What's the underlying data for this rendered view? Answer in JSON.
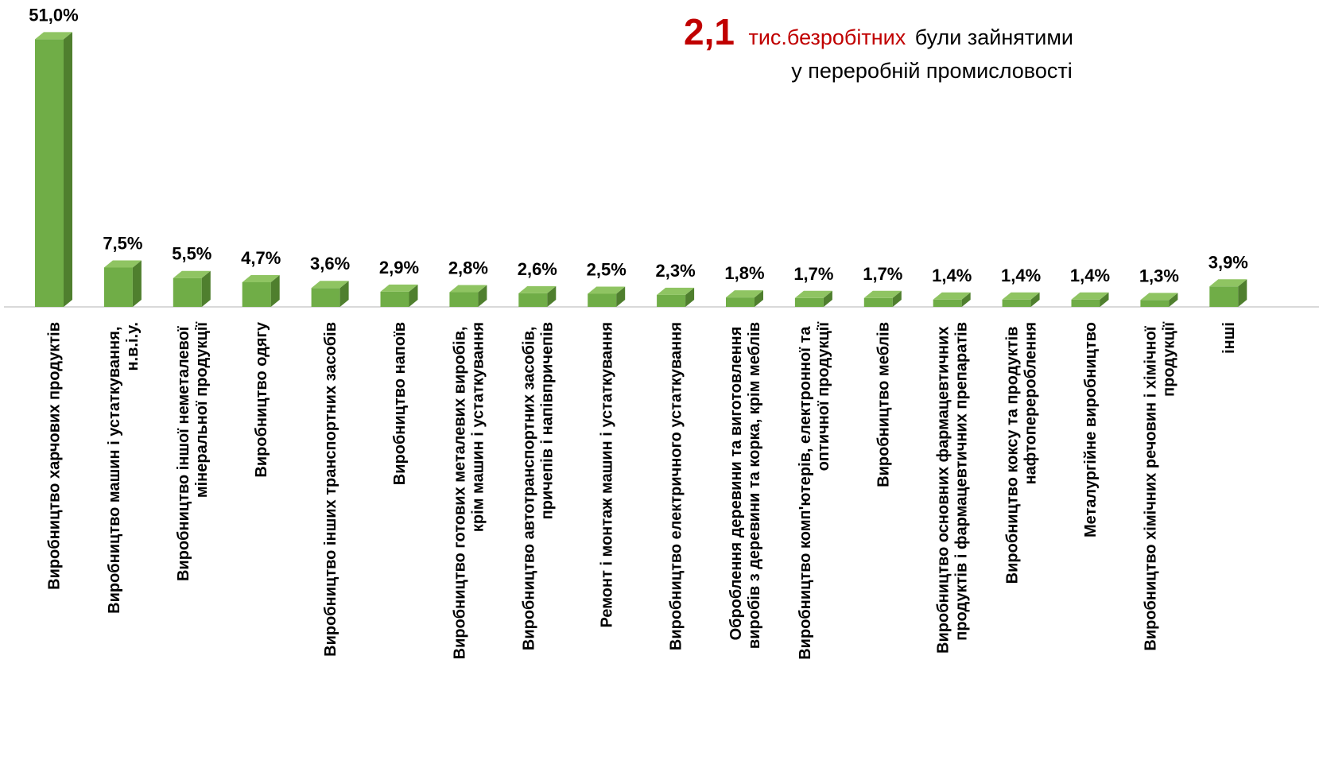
{
  "chart_data": {
    "type": "bar",
    "annotation": {
      "number": "2,1",
      "unit": "тис.безробітних",
      "text": "були зайнятими",
      "line2": "у переробній промисловості"
    },
    "categories": [
      "Виробництво харчових продуктів",
      "Виробництво машин і устаткування, н.в.і.у.",
      "Виробництво іншої неметалевої мінеральної продукції",
      "Виробництво одягу",
      "Виробництво інших транспортних засобів",
      "Виробництво напоїв",
      "Виробництво готових металевих виробів, крім машин і устаткування",
      "Виробництво автотранспортних засобів, причепів і напівпричепів",
      "Ремонт і монтаж машин і устаткування",
      "Виробництво електричного устаткування",
      "Оброблення деревини та виготовлення виробів з деревини та корка, крім меблів",
      "Виробництво комп'ютерів, електронної та оптичної продукції",
      "Виробництво меблів",
      "Виробництво основних фармацевтичних продуктів і фармацевтичних препаратів",
      "Виробництво коксу та продуктів нафтоперероблення",
      "Металургійне виробництво",
      "Виробництво хімічних речовин і хімічної продукції",
      "інші"
    ],
    "values": [
      51.0,
      7.5,
      5.5,
      4.7,
      3.6,
      2.9,
      2.8,
      2.6,
      2.5,
      2.3,
      1.8,
      1.7,
      1.7,
      1.4,
      1.4,
      1.4,
      1.3,
      3.9
    ],
    "value_labels": [
      "51,0%",
      "7,5%",
      "5,5%",
      "4,7%",
      "3,6%",
      "2,9%",
      "2,8%",
      "2,6%",
      "2,5%",
      "2,3%",
      "1,8%",
      "1,7%",
      "1,7%",
      "1,4%",
      "1,4%",
      "1,4%",
      "1,3%",
      "3,9%"
    ],
    "color": "#70ad47"
  }
}
